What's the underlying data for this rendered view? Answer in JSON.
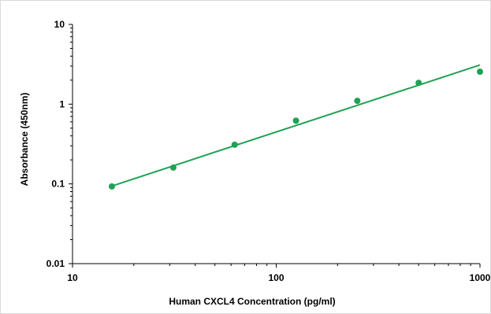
{
  "chart_data": {
    "type": "scatter",
    "title": "",
    "xlabel": "Human CXCL4 Concentration (pg/ml)",
    "ylabel": "Absorbance (450nm)",
    "x_scale": "log",
    "y_scale": "log",
    "xlim": [
      10,
      1000
    ],
    "ylim": [
      0.01,
      10
    ],
    "x_ticks": [
      10,
      100,
      1000
    ],
    "x_tick_labels": [
      "10",
      "100",
      "1000"
    ],
    "y_ticks": [
      0.01,
      0.1,
      1,
      10
    ],
    "y_tick_labels": [
      "0.01",
      "0.1",
      "1",
      "10"
    ],
    "grid": false,
    "legend": "none",
    "series": [
      {
        "x": [
          15.6,
          31.25,
          62.5,
          125,
          250,
          500,
          1000
        ],
        "y": [
          0.093,
          0.16,
          0.31,
          0.62,
          1.1,
          1.85,
          2.55
        ]
      }
    ],
    "trendline": {
      "type": "power",
      "x": [
        15.6,
        1000
      ],
      "y": [
        0.094,
        3.1
      ]
    },
    "colors": {
      "marker": "#1fa254",
      "line": "#1fa254",
      "axis": "#000000"
    }
  }
}
